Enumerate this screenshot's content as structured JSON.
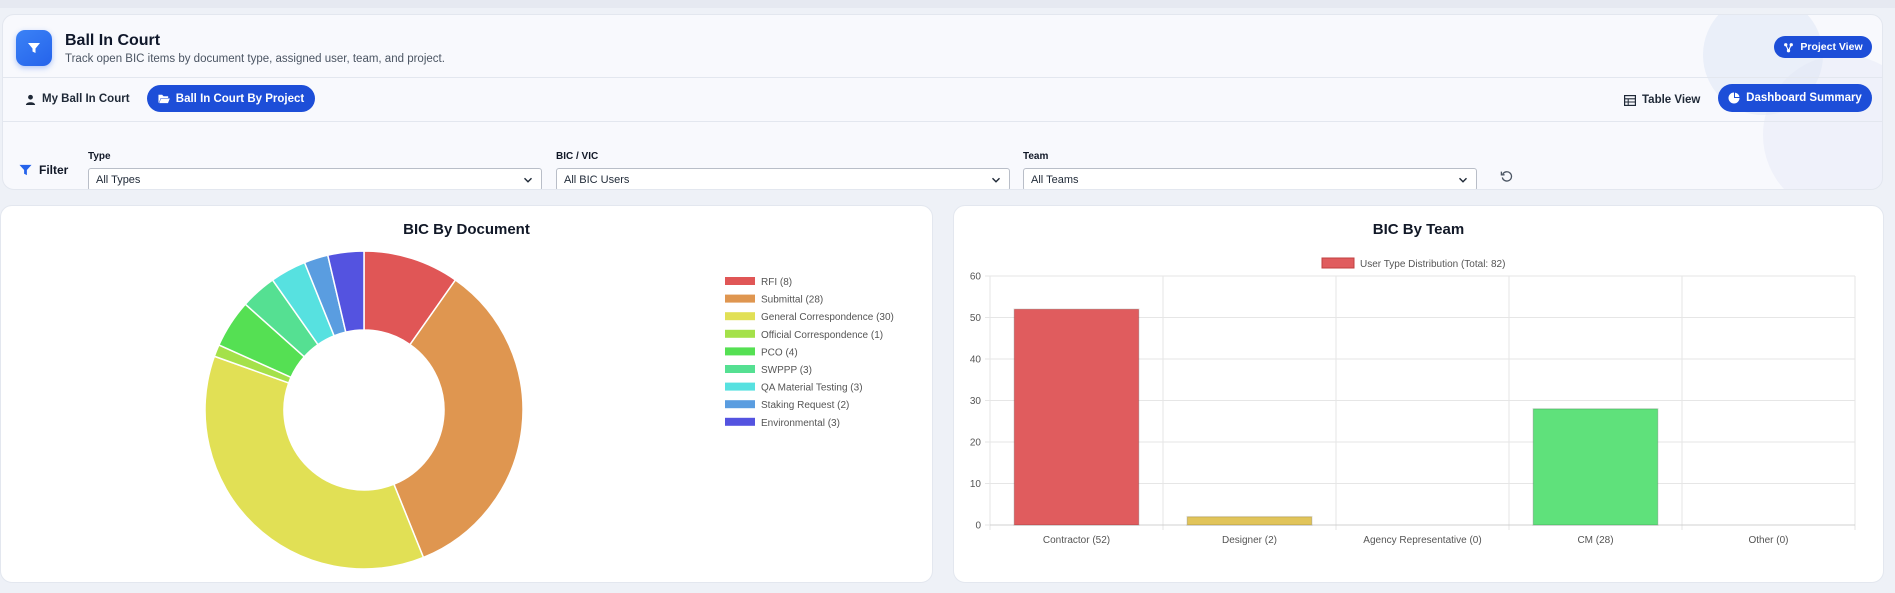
{
  "header": {
    "title": "Ball In Court",
    "subtitle": "Track open BIC items by document type, assigned user, team, and project.",
    "project_view_label": "Project View"
  },
  "tabs": {
    "my_ball_in_court": "My Ball In Court",
    "by_project": "Ball In Court By Project",
    "table_view": "Table View",
    "dashboard_summary": "Dashboard Summary"
  },
  "filters": {
    "label": "Filter",
    "type": {
      "label": "Type",
      "value": "All Types"
    },
    "bic": {
      "label": "BIC / VIC",
      "value": "All BIC Users"
    },
    "team": {
      "label": "Team",
      "value": "All Teams"
    }
  },
  "colors": {
    "primary": "#1d4ed8",
    "accent": "#3b82f6"
  },
  "chart_data": [
    {
      "type": "pie",
      "title": "BIC By Document",
      "labels": [
        "RFI (8)",
        "Submittal (28)",
        "General Correspondence (30)",
        "Official Correspondence (1)",
        "PCO (4)",
        "SWPPP (3)",
        "QA Material Testing (3)",
        "Staking Request (2)",
        "Environmental (3)"
      ],
      "values": [
        8,
        28,
        30,
        1,
        4,
        3,
        3,
        2,
        3
      ],
      "colors": [
        "#e05656",
        "#df9650",
        "#e1e055",
        "#a4e14a",
        "#55e053",
        "#55e092",
        "#57e1e0",
        "#5a9de0",
        "#5453e0"
      ],
      "legend": "right"
    },
    {
      "type": "bar",
      "title": "BIC By Team",
      "series": [
        {
          "name": "User Type Distribution (Total: 82)",
          "values": [
            52,
            2,
            0,
            28,
            0
          ]
        }
      ],
      "categories": [
        "Contractor (52)",
        "Designer (2)",
        "Agency Representative (0)",
        "CM (28)",
        "Other (0)"
      ],
      "bar_colors": [
        "#e05c5e",
        "#e1c45a",
        "#9b9b9b",
        "#5fe17b",
        "#9b9b9b"
      ],
      "yticks": [
        "0",
        "10",
        "20",
        "30",
        "40",
        "50",
        "60"
      ],
      "ylim": [
        0,
        60
      ],
      "grid": true,
      "legend": "top-center"
    }
  ]
}
